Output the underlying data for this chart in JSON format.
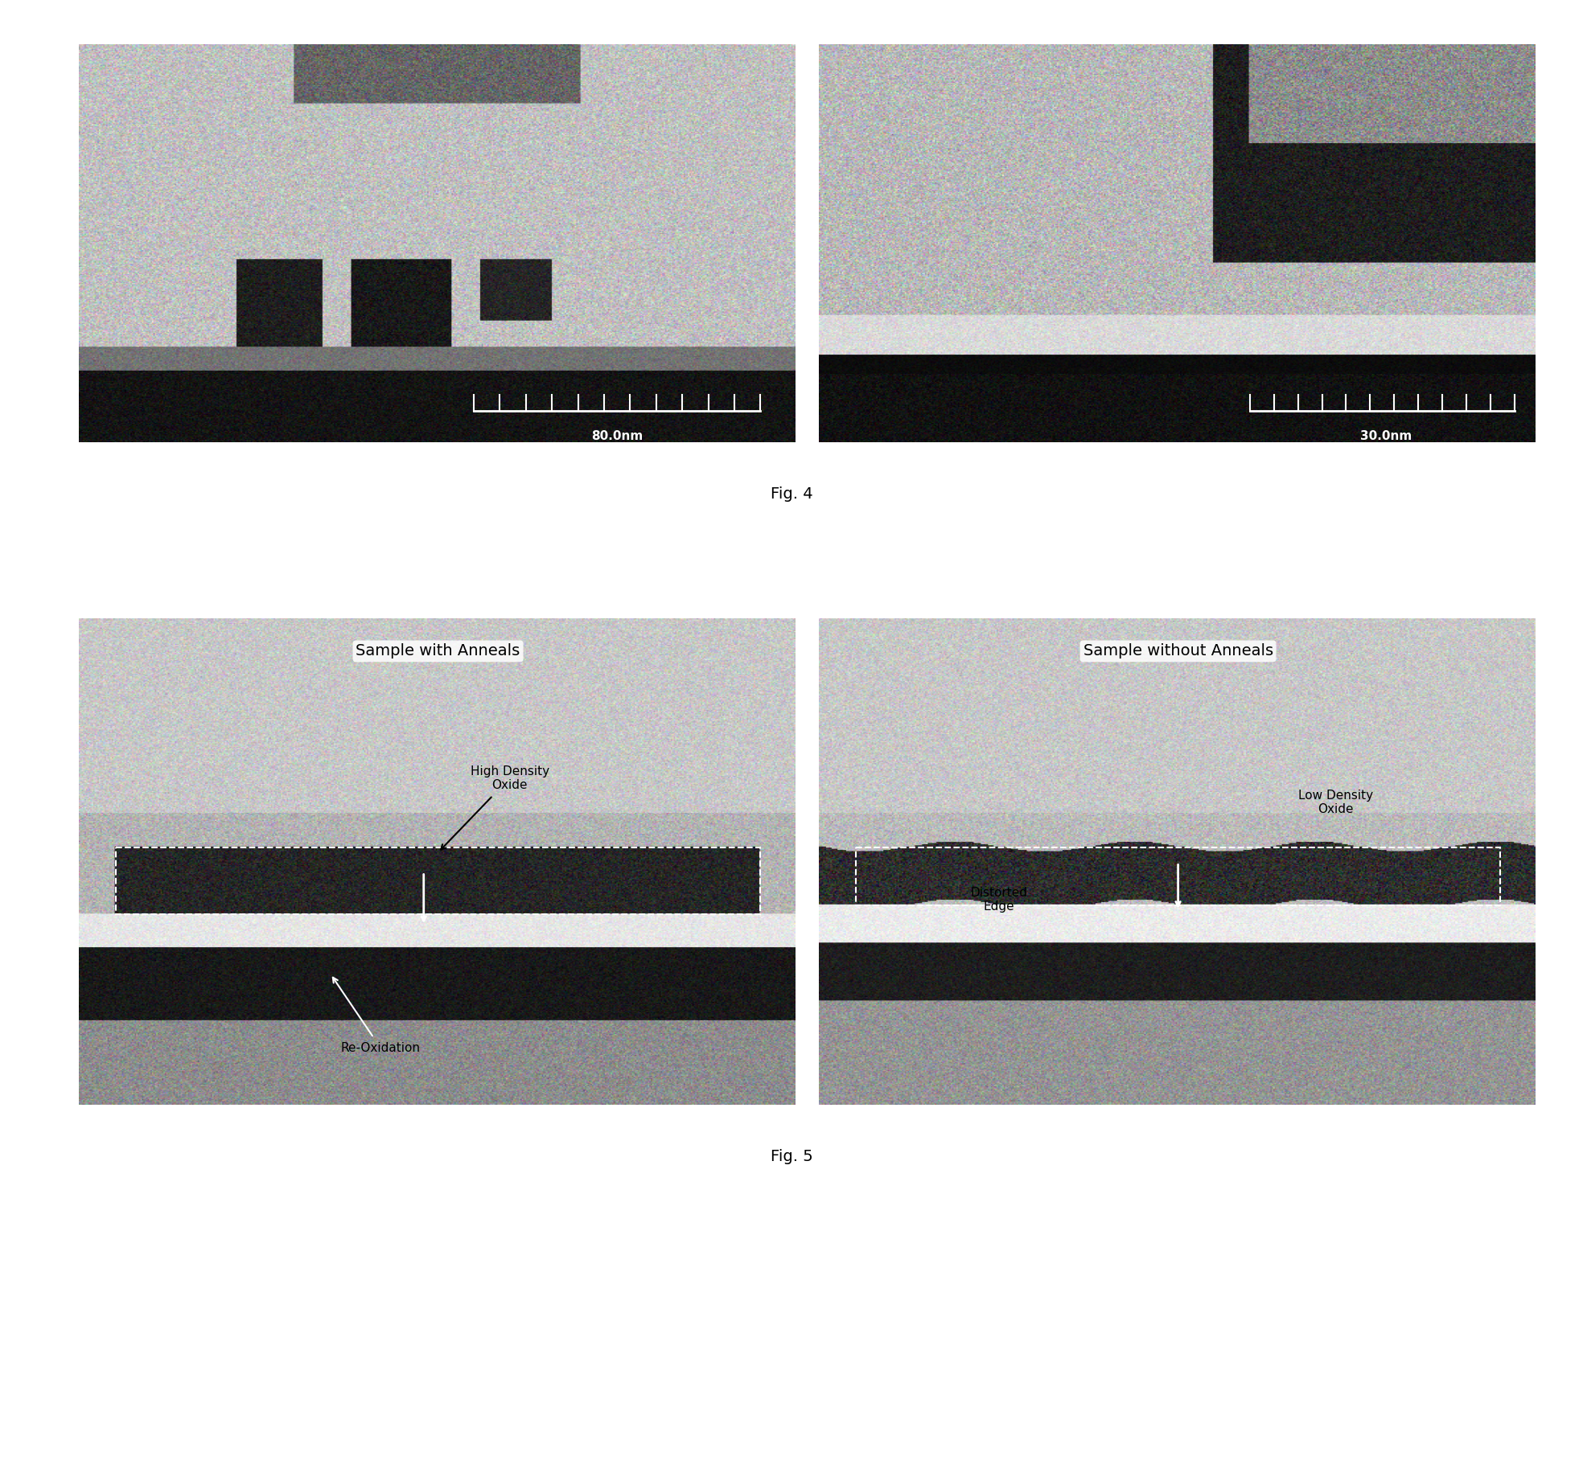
{
  "background_color": "#ffffff",
  "fig4_label": "Fig. 4",
  "fig5_label": "Fig. 5",
  "fig4_scale1": "80.0nm",
  "fig4_scale2": "30.0nm",
  "panel1_title": "Sample with Anneals",
  "panel2_title": "Sample without Anneals",
  "label_high_density": "High Density\nOxide",
  "label_re_oxidation": "Re-Oxidation",
  "label_distorted_edge": "Distorted\nEdge",
  "label_low_density": "Low Density\nOxide",
  "border_color": "#888888",
  "text_color": "#000000",
  "annotation_color": "#ffffff",
  "title_fontsize": 14,
  "label_fontsize": 11,
  "caption_fontsize": 14
}
